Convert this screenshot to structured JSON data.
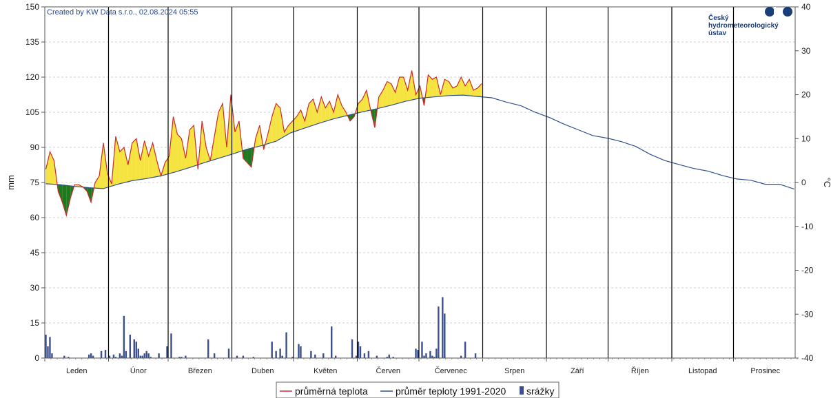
{
  "chart_data": {
    "type": "line",
    "credit": "Created by KW Data s.r.o., 02.08.2024 05:55",
    "logo": {
      "lines": [
        "Český",
        "hydrometeorologický",
        "ústav"
      ]
    },
    "months": [
      "Leden",
      "Únor",
      "Březen",
      "Duben",
      "Květen",
      "Červen",
      "Červenec",
      "Srpen",
      "Září",
      "Říjen",
      "Listopad",
      "Prosinec"
    ],
    "left_axis": {
      "label": "mm",
      "min": 0,
      "max": 150,
      "ticks": [
        0,
        15,
        30,
        45,
        60,
        75,
        90,
        105,
        120,
        135,
        150
      ]
    },
    "right_axis": {
      "label": "°C",
      "min": -40,
      "max": 40,
      "ticks": [
        -40,
        -30,
        -20,
        -10,
        0,
        10,
        20,
        30,
        40
      ]
    },
    "grid": true,
    "legend": {
      "position": "bottom",
      "items": [
        {
          "name": "průměrná teplota",
          "color": "#cc2b2b",
          "kind": "line"
        },
        {
          "name": "průměr teploty 1991-2020",
          "color": "#2f4f8f",
          "kind": "line"
        },
        {
          "name": "srážky",
          "color": "#3a4f8c",
          "kind": "bar"
        }
      ]
    },
    "colors": {
      "warmer": "#f5e342",
      "colder": "#1f7a1f",
      "normal": "#2f4f8f",
      "actual": "#cc2b2b",
      "precip": "#3a4f8c"
    },
    "series": [
      {
        "name": "průměr teploty 1991-2020",
        "axis": "right",
        "x": [
          1,
          8,
          15,
          22,
          29,
          36,
          43,
          50,
          57,
          64,
          71,
          78,
          85,
          92,
          99,
          106,
          113,
          120,
          127,
          134,
          141,
          148,
          155,
          162,
          169,
          176,
          183,
          190,
          197,
          204,
          211,
          218,
          225,
          232,
          239,
          246,
          253,
          260,
          267,
          274,
          281,
          288,
          295,
          302,
          309,
          316,
          323,
          330,
          337,
          344,
          351,
          358,
          365
        ],
        "values": [
          -0.3,
          -0.5,
          -0.9,
          -1.2,
          -1.4,
          -0.4,
          0.4,
          0.9,
          1.5,
          2.4,
          3.4,
          4.5,
          5.5,
          6.5,
          7.6,
          8.4,
          9.4,
          11.3,
          12.4,
          13.5,
          14.5,
          15.3,
          16.1,
          16.8,
          17.6,
          18.5,
          19.2,
          19.5,
          19.8,
          19.9,
          19.6,
          19.3,
          18.3,
          17.5,
          16.0,
          14.8,
          13.3,
          12.0,
          10.7,
          10.1,
          9.3,
          8.2,
          6.4,
          5.0,
          4.1,
          3.2,
          2.6,
          1.6,
          0.8,
          0.5,
          -0.4,
          -0.4,
          -1.5
        ]
      },
      {
        "name": "průměrná teplota",
        "axis": "right",
        "x": [
          1,
          3,
          5,
          7,
          9,
          11,
          13,
          15,
          17,
          19,
          21,
          23,
          25,
          27,
          29,
          31,
          33,
          35,
          37,
          39,
          41,
          43,
          45,
          47,
          49,
          51,
          53,
          55,
          57,
          59,
          61,
          63,
          65,
          67,
          69,
          71,
          73,
          75,
          77,
          79,
          81,
          83,
          85,
          87,
          89,
          91,
          93,
          95,
          97,
          99,
          101,
          103,
          105,
          107,
          109,
          111,
          113,
          115,
          117,
          119,
          121,
          123,
          125,
          127,
          129,
          131,
          133,
          135,
          137,
          139,
          141,
          143,
          145,
          147,
          149,
          151,
          153,
          155,
          157,
          159,
          161,
          163,
          165,
          167,
          169,
          171,
          173,
          175,
          177,
          179,
          181,
          183,
          185,
          187,
          189,
          191,
          193,
          195,
          197,
          199,
          201,
          203,
          205,
          207,
          209,
          211,
          213
        ],
        "values": [
          3.0,
          7.0,
          5.0,
          -2.0,
          -4.5,
          -7.5,
          -3.5,
          -0.5,
          -0.5,
          -1.0,
          -2.0,
          -4.5,
          0.0,
          1.5,
          9.0,
          2.0,
          -0.3,
          10.5,
          7.0,
          8.0,
          4.0,
          9.0,
          10.0,
          5.0,
          9.5,
          6.0,
          9.0,
          5.0,
          1.5,
          4.5,
          6.0,
          15.0,
          11.0,
          10.0,
          5.5,
          12.0,
          13.0,
          3.0,
          14.0,
          8.0,
          5.0,
          10.5,
          16.0,
          18.0,
          8.0,
          20.0,
          11.5,
          14.0,
          5.5,
          4.5,
          3.5,
          10.0,
          13.0,
          7.5,
          11.0,
          15.0,
          18.0,
          17.0,
          11.5,
          13.0,
          14.0,
          15.0,
          16.5,
          14.0,
          18.0,
          19.0,
          16.0,
          19.5,
          17.0,
          18.5,
          16.0,
          20.0,
          17.5,
          16.0,
          14.0,
          15.0,
          18.0,
          19.0,
          21.0,
          16.5,
          12.5,
          19.5,
          21.0,
          23.0,
          22.5,
          20.5,
          24.0,
          24.0,
          21.0,
          25.5,
          20.0,
          22.0,
          17.5,
          24.5,
          23.5,
          24.0,
          20.0,
          23.5,
          23.0,
          21.5,
          22.0,
          24.0,
          22.0,
          23.5,
          21.0,
          21.5,
          22.5
        ]
      }
    ],
    "precipitation": {
      "series_name": "srážky",
      "axis": "left",
      "days": [
        1,
        2,
        3,
        4,
        10,
        12,
        22,
        23,
        24,
        28,
        30,
        32,
        34,
        35,
        37,
        38,
        39,
        40,
        42,
        44,
        45,
        46,
        47,
        48,
        49,
        50,
        51,
        52,
        56,
        60,
        62,
        66,
        67,
        69,
        80,
        83,
        90,
        94,
        97,
        102,
        111,
        113,
        115,
        116,
        118,
        121,
        124,
        125,
        130,
        132,
        136,
        140,
        142,
        150,
        152,
        153,
        154,
        156,
        158,
        162,
        167,
        168,
        170,
        181,
        182,
        184,
        185,
        186,
        188,
        189,
        190,
        191,
        192,
        194,
        195,
        203,
        205,
        210
      ],
      "values": [
        10.0,
        5.0,
        9.0,
        2.0,
        1.0,
        0.5,
        1.5,
        2.0,
        1.0,
        3.0,
        3.5,
        1.0,
        1.5,
        0.5,
        2.0,
        1.0,
        18.0,
        3.0,
        10.0,
        8.0,
        7.0,
        4.0,
        1.0,
        1.0,
        2.0,
        3.0,
        2.0,
        0.5,
        2.0,
        5.0,
        10.5,
        0.5,
        0.5,
        1.0,
        8.0,
        2.0,
        4.0,
        1.0,
        1.0,
        0.5,
        7.0,
        3.0,
        4.0,
        1.0,
        11.0,
        0.5,
        6.0,
        5.0,
        3.0,
        1.5,
        2.0,
        13.5,
        1.0,
        8.0,
        1.0,
        7.0,
        5.0,
        2.0,
        3.0,
        1.0,
        0.5,
        1.5,
        0.5,
        4.0,
        3.5,
        7.0,
        1.0,
        2.0,
        3.0,
        1.0,
        0.5,
        4.0,
        22.0,
        26.0,
        19.0,
        1.0,
        7.0,
        2.0
      ]
    }
  }
}
